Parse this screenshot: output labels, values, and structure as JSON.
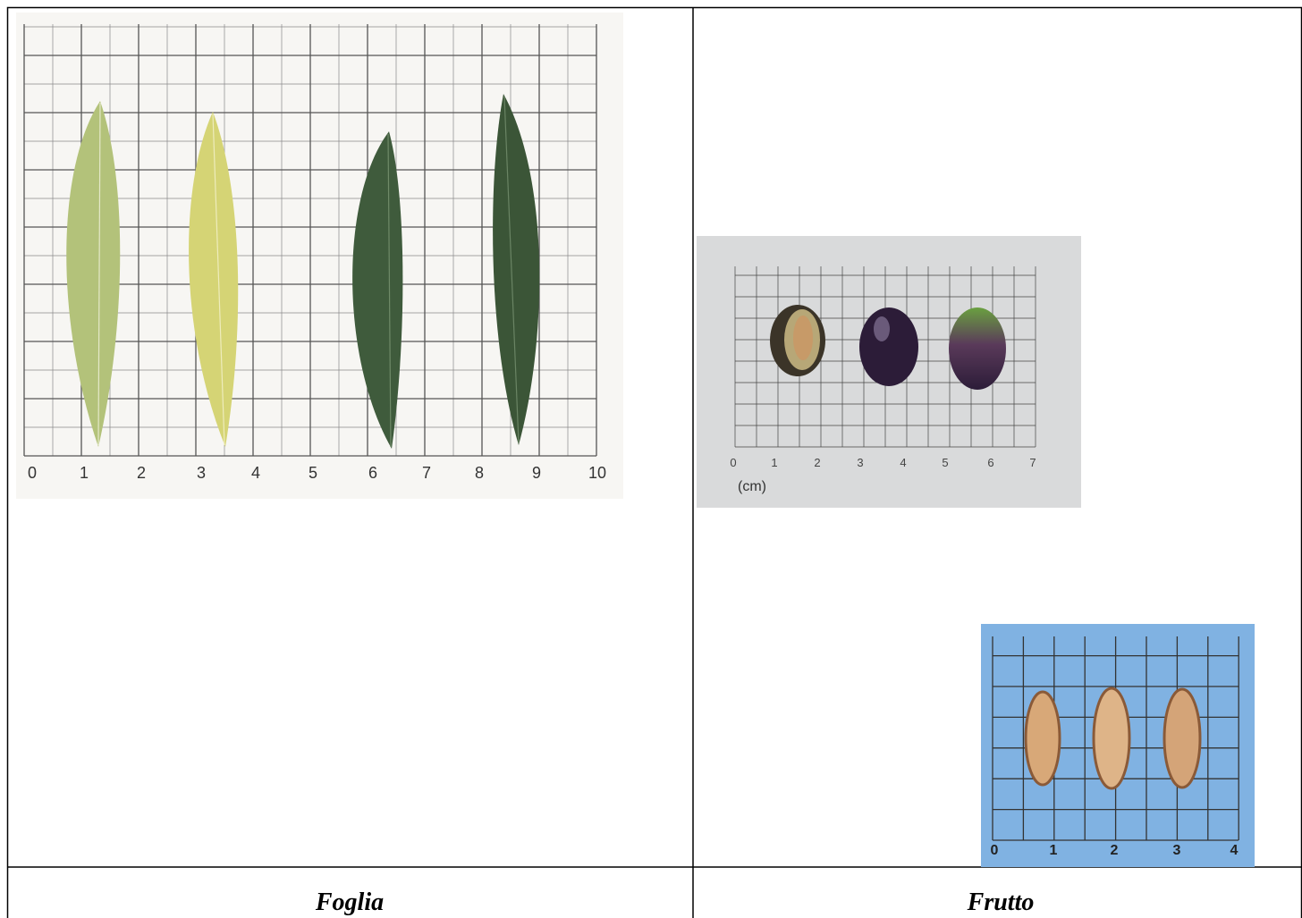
{
  "table": {
    "captions": [
      "Foglia",
      "Frutto"
    ]
  },
  "images": [
    {
      "scale_labels": [
        "0",
        "1",
        "2",
        "3",
        "4",
        "5",
        "6",
        "7",
        "8",
        "9",
        "10"
      ]
    },
    {
      "scale_labels": [
        "0",
        "1",
        "2",
        "3",
        "4",
        "5",
        "6",
        "7"
      ],
      "unit": "(cm)"
    },
    {
      "scale_labels": [
        "0",
        "1",
        "2",
        "3",
        "4"
      ]
    }
  ]
}
